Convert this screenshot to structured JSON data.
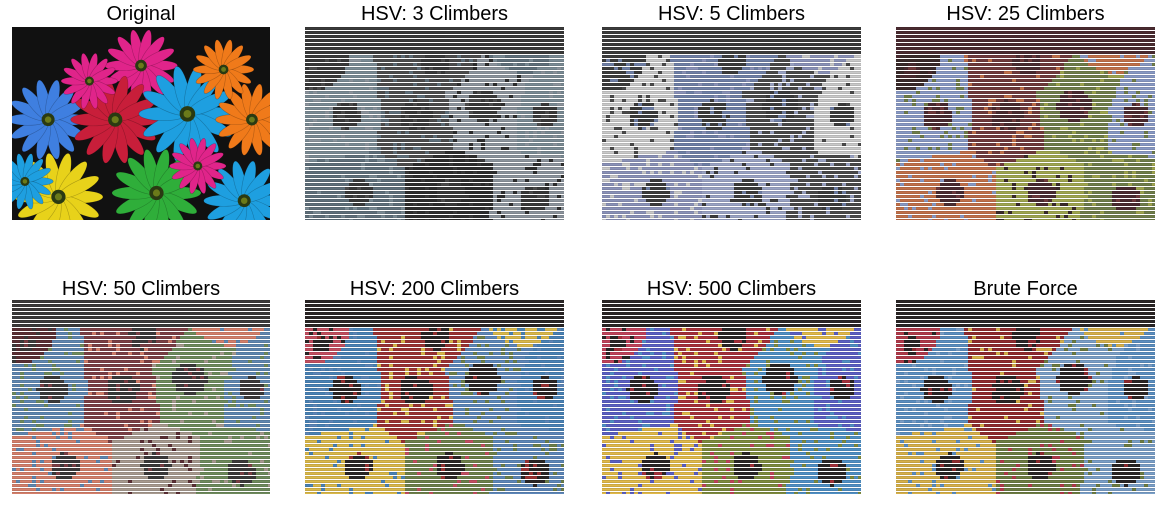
{
  "figure": {
    "panels": [
      {
        "id": "original",
        "title": "Original",
        "style": "photo"
      },
      {
        "id": "hsv-3",
        "title": "HSV: 3 Climbers",
        "style": "mosaic",
        "palette": [
          "#3a3a3a",
          "#4d4d4d",
          "#5f6f7a",
          "#7a8a94",
          "#8c949c",
          "#2e2e2e"
        ]
      },
      {
        "id": "hsv-5",
        "title": "HSV: 5 Climbers",
        "style": "mosaic",
        "palette": [
          "#3c3c3c",
          "#6f7fa6",
          "#8a92b8",
          "#c9c9c9",
          "#4a4a4a",
          "#9aa3c4"
        ]
      },
      {
        "id": "hsv-25",
        "title": "HSV: 25 Climbers",
        "style": "mosaic",
        "palette": [
          "#4a2b30",
          "#6f3a3c",
          "#c0704a",
          "#8899c4",
          "#6f7d4a",
          "#9fa54f",
          "#3a2a2a"
        ]
      },
      {
        "id": "hsv-50",
        "title": "HSV: 50 Climbers",
        "style": "mosaic",
        "palette": [
          "#3b3a3a",
          "#7b3f44",
          "#d47f6b",
          "#5f86b0",
          "#6e8a5c",
          "#a79a8f",
          "#5a2f34"
        ]
      },
      {
        "id": "hsv-200",
        "title": "HSV: 200 Climbers",
        "style": "mosaic",
        "palette": [
          "#2a2525",
          "#9a3232",
          "#d9b84a",
          "#4a82b5",
          "#5d86b8",
          "#6d7f4a",
          "#c24e5f"
        ]
      },
      {
        "id": "hsv-500",
        "title": "HSV: 500 Climbers",
        "style": "mosaic",
        "palette": [
          "#2a2525",
          "#a5303a",
          "#e0b94a",
          "#5b5fc2",
          "#4f8fc4",
          "#7d8a3e",
          "#c0425a"
        ]
      },
      {
        "id": "brute-force",
        "title": "Brute Force",
        "style": "mosaic",
        "palette": [
          "#2a2525",
          "#8e2a2e",
          "#d6b04a",
          "#5b8ec0",
          "#7a9fc7",
          "#6c7c42",
          "#b03a4a"
        ]
      }
    ]
  }
}
